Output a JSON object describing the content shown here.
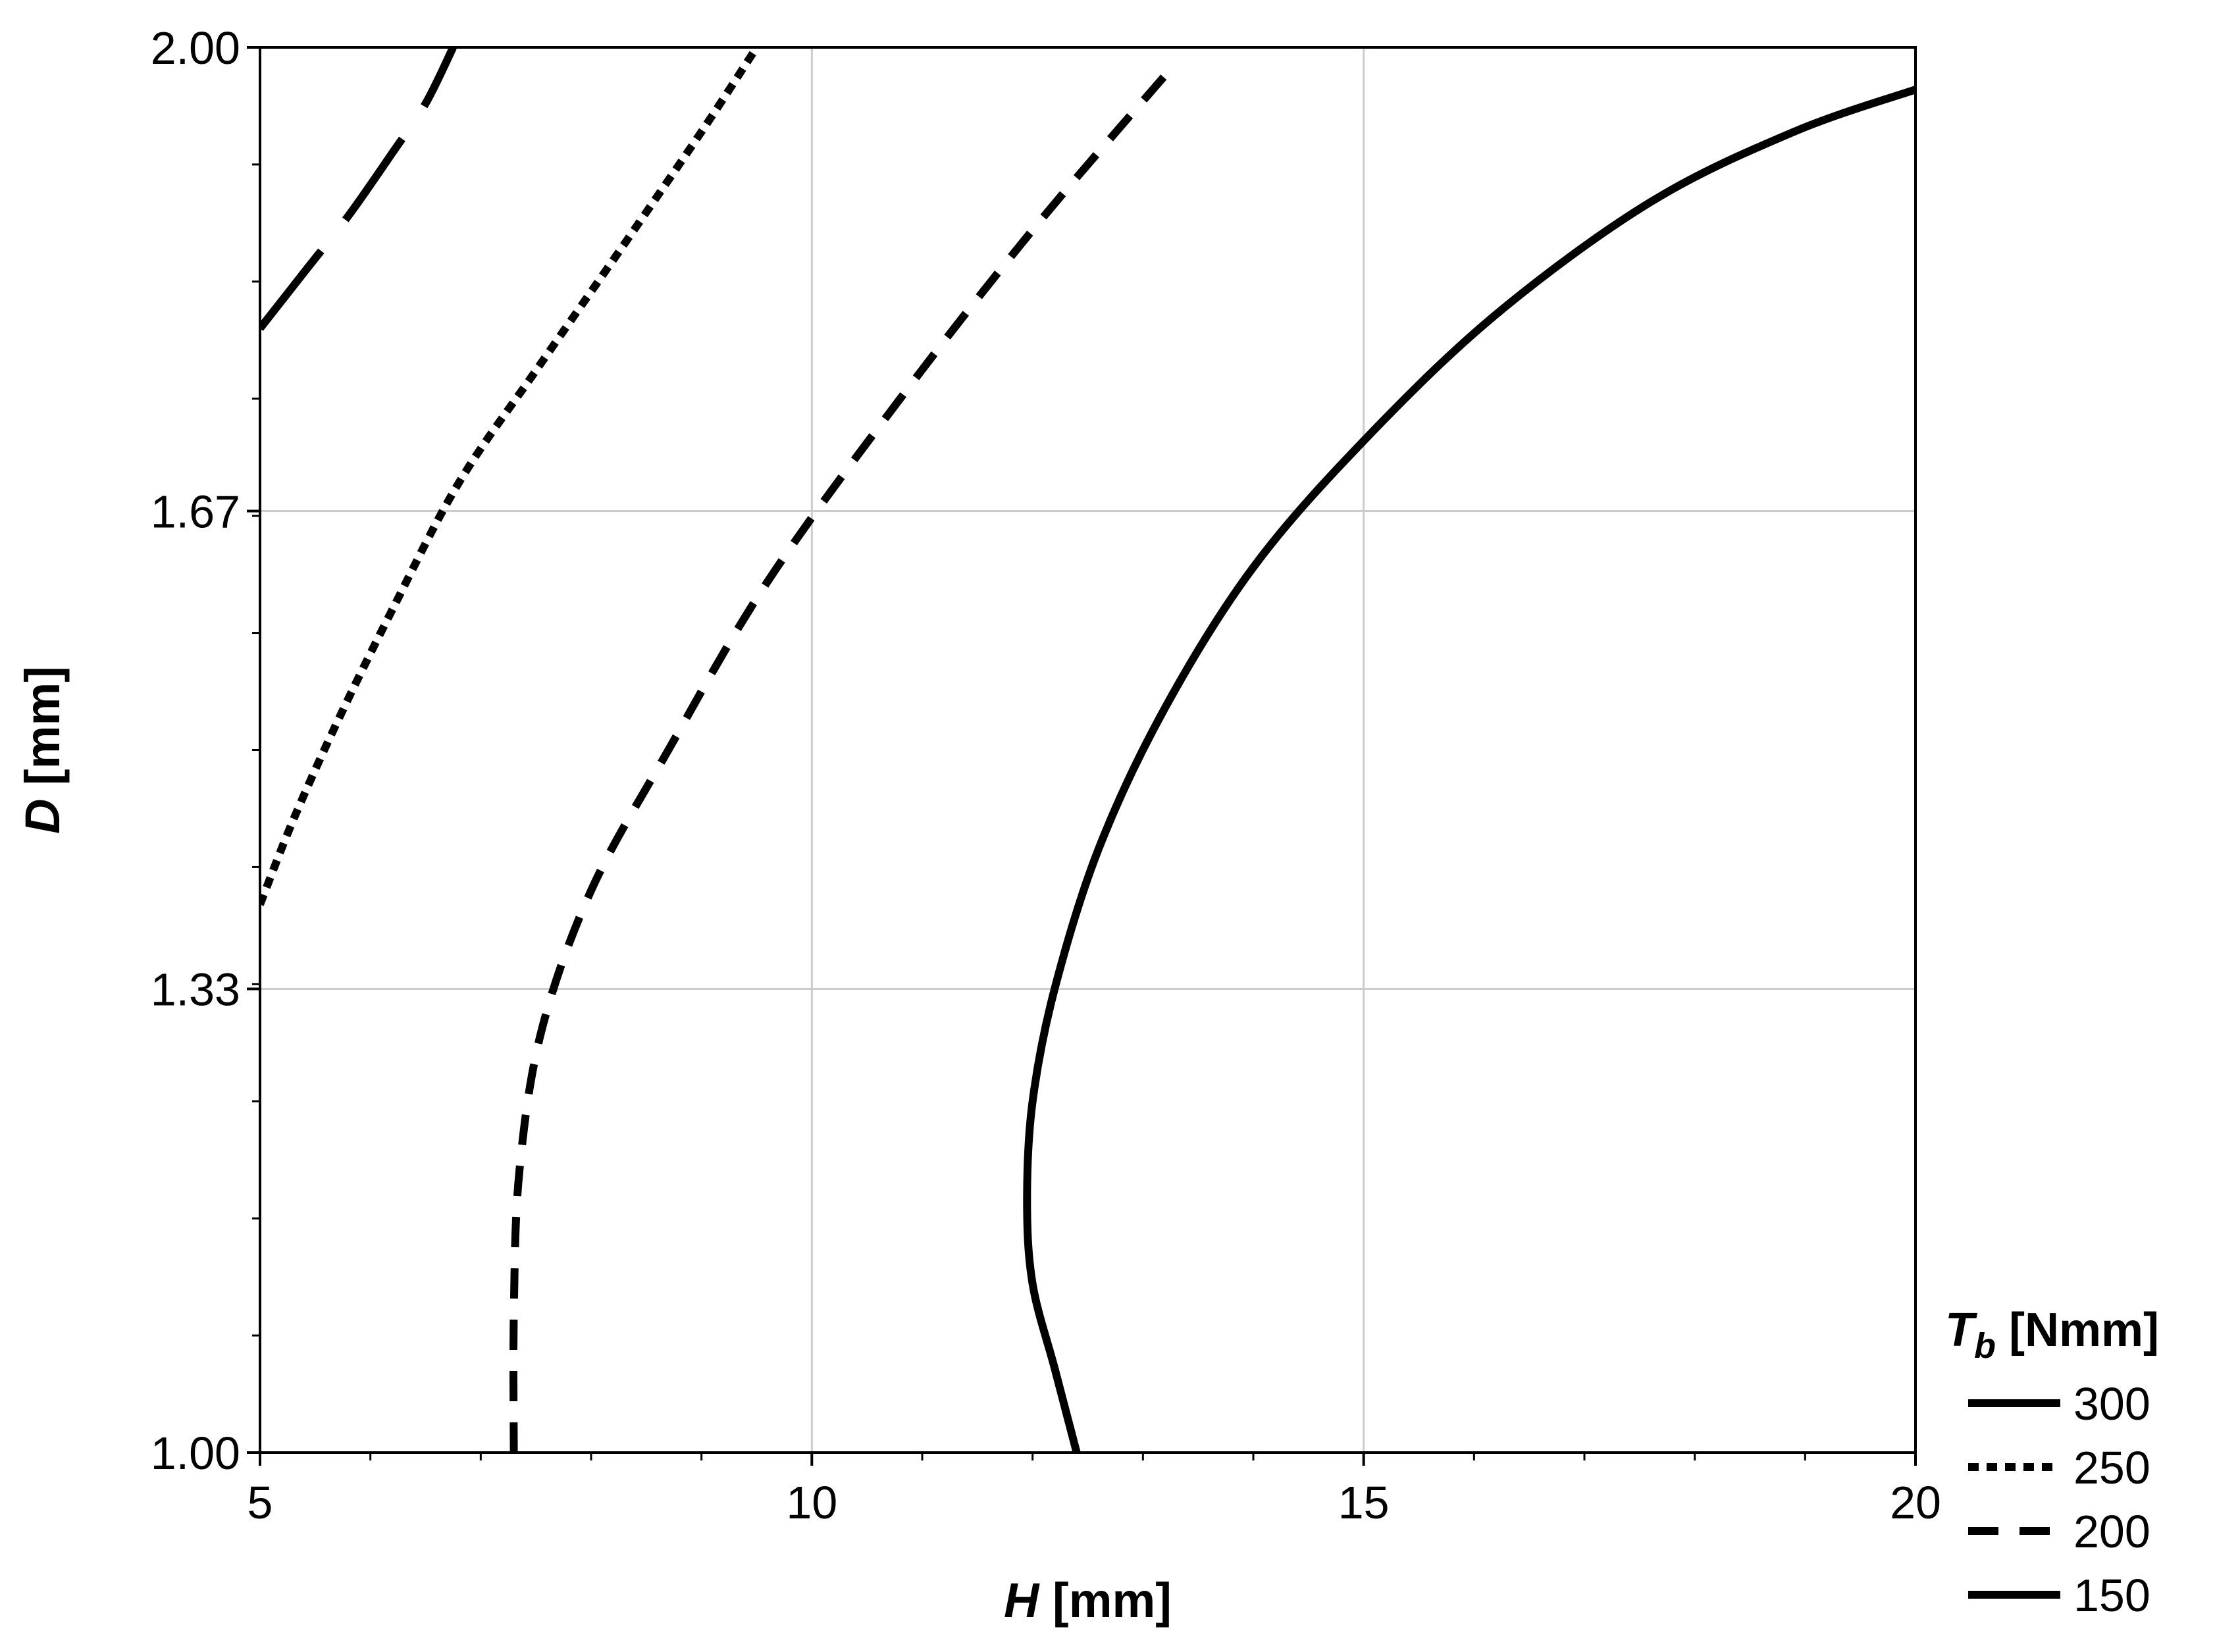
{
  "chart_data": {
    "type": "line",
    "title": "",
    "xlabel": "H [mm]",
    "ylabel": "D [mm]",
    "xlim": [
      5,
      20
    ],
    "ylim": [
      1.0,
      2.0
    ],
    "xticks": [
      5,
      10,
      15,
      20
    ],
    "yticks": [
      1.0,
      1.33,
      1.67,
      2.0
    ],
    "xtick_labels": [
      "5",
      "10",
      "15",
      "20"
    ],
    "ytick_labels": [
      "1.00",
      "1.33",
      "1.67",
      "2.00"
    ],
    "grid": true,
    "legend": {
      "placement": "right-bottom",
      "title_main": "T",
      "title_sub": "b",
      "title_unit": " [Nmm]"
    },
    "series": [
      {
        "name": "300",
        "dash": "long-dash",
        "x": [
          5.0,
          5.4,
          5.8,
          6.2,
          6.5,
          6.75
        ],
        "y": [
          1.8,
          1.84,
          1.88,
          1.925,
          1.96,
          2.0
        ]
      },
      {
        "name": "250",
        "dash": "dot",
        "x": [
          5.0,
          5.3,
          5.7,
          6.2,
          6.8,
          7.5,
          8.3,
          9.0,
          9.5
        ],
        "y": [
          1.39,
          1.45,
          1.52,
          1.6,
          1.69,
          1.77,
          1.86,
          1.94,
          2.0
        ]
      },
      {
        "name": "200",
        "dash": "dash",
        "x": [
          7.3,
          7.3,
          7.35,
          7.55,
          8.0,
          8.7,
          9.6,
          10.8,
          12.0,
          13.2
        ],
        "y": [
          1.0,
          1.1,
          1.2,
          1.3,
          1.4,
          1.5,
          1.62,
          1.75,
          1.87,
          1.98
        ]
      },
      {
        "name": "150",
        "dash": "solid",
        "x": [
          12.4,
          12.2,
          12.0,
          11.95,
          12.0,
          12.2,
          12.6,
          13.2,
          14.0,
          15.0,
          16.2,
          17.6,
          18.9,
          20.0
        ],
        "y": [
          1.0,
          1.06,
          1.12,
          1.18,
          1.25,
          1.33,
          1.43,
          1.53,
          1.63,
          1.72,
          1.81,
          1.89,
          1.94,
          1.97
        ]
      }
    ]
  }
}
